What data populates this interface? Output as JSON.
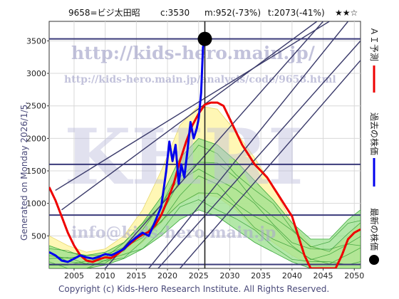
{
  "header": {
    "code_name": "9658=ビジ太田昭",
    "current": "c:3530",
    "m_value": "m:952(-73%)",
    "t_value": "t:2073(-41%)",
    "rating": "★★☆"
  },
  "side_note": "Generated on Monday 2026/1/5.",
  "copyright": "Copyright (c) Kids-Hero Research Institute. All Rights Reserved.",
  "watermarks": {
    "site": "http://kids-hero.main.jp/",
    "analysis": "http://kids-hero.main.jp/analysis/code/9658.html",
    "big": "KHRI",
    "info": "info@kids-hero.main.jp"
  },
  "legend": [
    {
      "label": "ＡＩ予測",
      "color": "#ee0000",
      "icon": "red-line-icon"
    },
    {
      "label": "過去の株価",
      "color": "#0000ee",
      "icon": "blue-line-icon"
    },
    {
      "label": "最新の株価",
      "color": "#000000",
      "icon": "black-dot-icon"
    }
  ],
  "chart_data": {
    "type": "line",
    "xlim": [
      2001,
      2051
    ],
    "ylim": [
      0,
      3800
    ],
    "x_ticks": [
      2005,
      2010,
      2015,
      2020,
      2025,
      2030,
      2035,
      2040,
      2045,
      2050
    ],
    "y_ticks": [
      500,
      1000,
      1500,
      2000,
      2500,
      3000,
      3500
    ],
    "grid": true,
    "series": [
      {
        "name": "過去の株価",
        "color": "#0000ee",
        "points": [
          [
            2001,
            250
          ],
          [
            2002,
            200
          ],
          [
            2003,
            120
          ],
          [
            2004,
            100
          ],
          [
            2005,
            150
          ],
          [
            2006,
            200
          ],
          [
            2007,
            170
          ],
          [
            2008,
            150
          ],
          [
            2009,
            180
          ],
          [
            2010,
            220
          ],
          [
            2011,
            200
          ],
          [
            2012,
            250
          ],
          [
            2013,
            300
          ],
          [
            2014,
            400
          ],
          [
            2015,
            480
          ],
          [
            2016,
            550
          ],
          [
            2017,
            500
          ],
          [
            2018,
            720
          ],
          [
            2019,
            950
          ],
          [
            2019.8,
            1500
          ],
          [
            2020.3,
            1950
          ],
          [
            2020.8,
            1650
          ],
          [
            2021.3,
            1900
          ],
          [
            2021.8,
            1300
          ],
          [
            2022.2,
            1600
          ],
          [
            2022.7,
            1400
          ],
          [
            2023.2,
            1800
          ],
          [
            2023.7,
            2250
          ],
          [
            2024.2,
            2000
          ],
          [
            2024.7,
            2150
          ],
          [
            2025.0,
            2300
          ],
          [
            2025.4,
            2700
          ],
          [
            2025.7,
            3400
          ],
          [
            2026.0,
            3530
          ]
        ]
      },
      {
        "name": "ＡＩ予測",
        "color": "#ee0000",
        "points": [
          [
            2001,
            1250
          ],
          [
            2002,
            1050
          ],
          [
            2003,
            800
          ],
          [
            2004,
            550
          ],
          [
            2005,
            350
          ],
          [
            2006,
            200
          ],
          [
            2007,
            120
          ],
          [
            2008,
            100
          ],
          [
            2009,
            140
          ],
          [
            2010,
            170
          ],
          [
            2011,
            160
          ],
          [
            2012,
            220
          ],
          [
            2013,
            300
          ],
          [
            2014,
            380
          ],
          [
            2015,
            460
          ],
          [
            2016,
            520
          ],
          [
            2017,
            560
          ],
          [
            2018,
            660
          ],
          [
            2019,
            820
          ],
          [
            2020,
            1050
          ],
          [
            2021,
            1300
          ],
          [
            2022,
            1650
          ],
          [
            2023,
            1950
          ],
          [
            2024,
            2200
          ],
          [
            2025,
            2380
          ],
          [
            2026,
            2520
          ],
          [
            2027,
            2550
          ],
          [
            2028,
            2550
          ],
          [
            2029,
            2500
          ],
          [
            2030,
            2300
          ],
          [
            2031,
            2100
          ],
          [
            2032,
            1900
          ],
          [
            2033,
            1750
          ],
          [
            2034,
            1600
          ],
          [
            2035,
            1500
          ],
          [
            2036,
            1400
          ],
          [
            2037,
            1250
          ],
          [
            2038,
            1100
          ],
          [
            2039,
            950
          ],
          [
            2040,
            800
          ],
          [
            2041,
            500
          ],
          [
            2042,
            200
          ],
          [
            2043,
            0
          ],
          [
            2044,
            0
          ],
          [
            2045,
            0
          ],
          [
            2046,
            0
          ],
          [
            2047,
            0
          ],
          [
            2048,
            200
          ],
          [
            2049,
            450
          ],
          [
            2050,
            550
          ],
          [
            2051,
            600
          ]
        ]
      }
    ],
    "latest_point": {
      "name": "最新の株価",
      "x": 2026.0,
      "y": 3530
    },
    "horizontal_lines": [
      {
        "y": 3530,
        "color": "#3a3a7a"
      },
      {
        "y": 1600,
        "color": "#3a3a7a"
      },
      {
        "y": 820,
        "color": "#3a3a7a"
      },
      {
        "y": 60,
        "color": "#3a3a7a"
      }
    ],
    "vertical_lines": [
      {
        "x": 2026.0,
        "color": "#222222"
      }
    ],
    "diagonal_lines": [
      {
        "from": [
          2002,
          1200
        ],
        "to": [
          2046,
          3800
        ]
      },
      {
        "from": [
          2003,
          900
        ],
        "to": [
          2044,
          3800
        ]
      },
      {
        "from": [
          2010,
          0
        ],
        "to": [
          2045,
          3800
        ]
      },
      {
        "from": [
          2017,
          0
        ],
        "to": [
          2049,
          3800
        ]
      },
      {
        "from": [
          2018.5,
          0
        ],
        "to": [
          2051,
          3500
        ]
      },
      {
        "from": [
          2022,
          0
        ],
        "to": [
          2051,
          3200
        ]
      }
    ],
    "forecast_band": {
      "upper": [
        [
          2001,
          500
        ],
        [
          2004,
          350
        ],
        [
          2007,
          250
        ],
        [
          2010,
          300
        ],
        [
          2013,
          500
        ],
        [
          2016,
          900
        ],
        [
          2019,
          1500
        ],
        [
          2022,
          2200
        ],
        [
          2025,
          2500
        ],
        [
          2028,
          2450
        ],
        [
          2031,
          2100
        ],
        [
          2034,
          1700
        ],
        [
          2037,
          1250
        ],
        [
          2040,
          700
        ],
        [
          2043,
          350
        ],
        [
          2046,
          250
        ],
        [
          2049,
          500
        ],
        [
          2051,
          700
        ]
      ],
      "lower": [
        [
          2001,
          0
        ],
        [
          2004,
          0
        ],
        [
          2007,
          0
        ],
        [
          2010,
          50
        ],
        [
          2013,
          200
        ],
        [
          2016,
          400
        ],
        [
          2019,
          700
        ],
        [
          2022,
          1000
        ],
        [
          2025,
          1150
        ],
        [
          2028,
          1100
        ],
        [
          2031,
          900
        ],
        [
          2034,
          600
        ],
        [
          2037,
          400
        ],
        [
          2040,
          200
        ],
        [
          2043,
          50
        ],
        [
          2046,
          0
        ],
        [
          2049,
          0
        ],
        [
          2051,
          0
        ]
      ]
    },
    "green_band": {
      "upper": [
        [
          2001,
          350
        ],
        [
          2004,
          250
        ],
        [
          2007,
          200
        ],
        [
          2010,
          250
        ],
        [
          2013,
          400
        ],
        [
          2016,
          700
        ],
        [
          2019,
          1100
        ],
        [
          2022,
          1700
        ],
        [
          2025,
          2000
        ],
        [
          2028,
          1900
        ],
        [
          2031,
          1650
        ],
        [
          2034,
          1350
        ],
        [
          2037,
          1050
        ],
        [
          2040,
          700
        ],
        [
          2043,
          450
        ],
        [
          2046,
          450
        ],
        [
          2049,
          750
        ],
        [
          2051,
          900
        ]
      ],
      "lower": [
        [
          2001,
          0
        ],
        [
          2004,
          0
        ],
        [
          2007,
          0
        ],
        [
          2010,
          50
        ],
        [
          2013,
          150
        ],
        [
          2016,
          300
        ],
        [
          2019,
          500
        ],
        [
          2022,
          750
        ],
        [
          2025,
          900
        ],
        [
          2028,
          800
        ],
        [
          2031,
          600
        ],
        [
          2034,
          400
        ],
        [
          2037,
          250
        ],
        [
          2040,
          100
        ],
        [
          2043,
          0
        ],
        [
          2046,
          0
        ],
        [
          2049,
          0
        ],
        [
          2051,
          0
        ]
      ]
    }
  }
}
